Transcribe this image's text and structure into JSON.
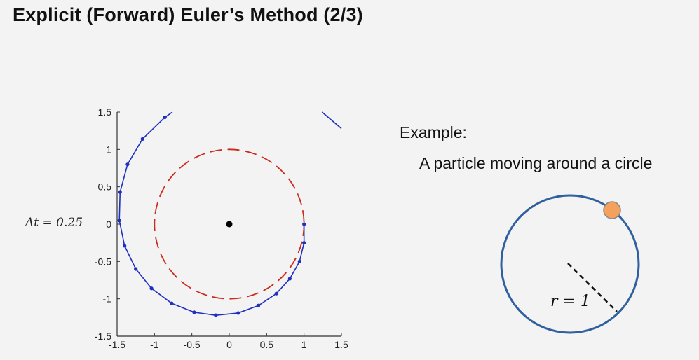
{
  "title": "Explicit (Forward) Euler’s Method (2/3)",
  "dt_label": "Δt = 0.25",
  "example": {
    "label": "Example:",
    "text": "A particle moving around a circle",
    "radius_label": "r = 1"
  },
  "colors": {
    "trajectory": "#1f2fbf",
    "reference_circle": "#cc2a1a",
    "center_dot": "#000000",
    "diagram_circle": "#2f5f9e",
    "particle": "#f4a15e"
  },
  "chart_data": {
    "type": "line",
    "xlim": [
      -1.5,
      1.5
    ],
    "ylim": [
      -1.5,
      1.5
    ],
    "xticks": [
      "-1.5",
      "-1",
      "-0.5",
      "0",
      "0.5",
      "1",
      "1.5"
    ],
    "yticks": [
      "1.5",
      "1",
      "0.5",
      "0",
      "-0.5",
      "-1",
      "-1.5"
    ],
    "center": [
      0,
      0
    ],
    "reference_radius": 1,
    "series": [
      {
        "points": [
          [
            1.0,
            0.0
          ],
          [
            1.0,
            -0.25
          ],
          [
            0.94,
            -0.5
          ],
          [
            0.81,
            -0.73
          ],
          [
            0.63,
            -0.93
          ],
          [
            0.39,
            -1.09
          ],
          [
            0.12,
            -1.19
          ],
          [
            -0.18,
            -1.22
          ],
          [
            -0.47,
            -1.18
          ],
          [
            -0.77,
            -1.06
          ],
          [
            -1.04,
            -0.86
          ],
          [
            -1.25,
            -0.6
          ],
          [
            -1.4,
            -0.29
          ],
          [
            -1.47,
            0.05
          ],
          [
            -1.46,
            0.43
          ],
          [
            -1.36,
            0.8
          ],
          [
            -1.16,
            1.14
          ],
          [
            -0.86,
            1.43
          ],
          [
            -0.76,
            1.5
          ]
        ]
      },
      {
        "points": [
          [
            1.24,
            1.5
          ],
          [
            1.5,
            1.28
          ]
        ]
      }
    ]
  }
}
